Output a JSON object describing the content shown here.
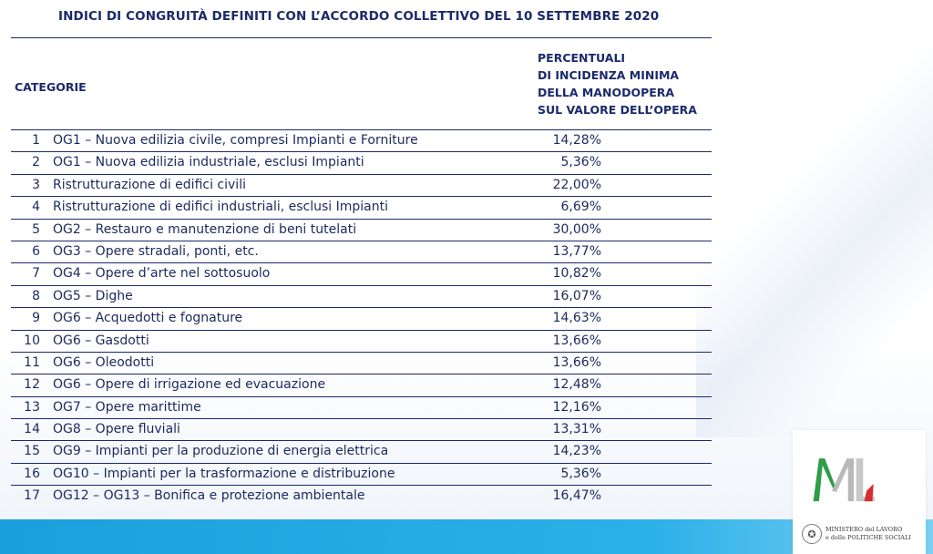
{
  "title": "INDICI DI CONGRUITÀ DEFINITI CON L’ACCORDO COLLETTIVO DEL 10 SETTEMBRE 2020",
  "table": {
    "header_category": "CATEGORIE",
    "header_percent_lines": [
      "PERCENTUALI",
      "DI INCIDENZA MINIMA",
      "DELLA MANODOPERA",
      "SUL VALORE DELL’OPERA"
    ],
    "rows": [
      {
        "n": "1",
        "desc": "OG1 – Nuova edilizia civile, compresi Impianti e Forniture",
        "pct": "14,28%"
      },
      {
        "n": "2",
        "desc": "OG1 – Nuova edilizia industriale, esclusi Impianti",
        "pct": "5,36%"
      },
      {
        "n": "3",
        "desc": "Ristrutturazione di edifici civili",
        "pct": "22,00%"
      },
      {
        "n": "4",
        "desc": "Ristrutturazione di edifici industriali, esclusi Impianti",
        "pct": "6,69%"
      },
      {
        "n": "5",
        "desc": "OG2 – Restauro e manutenzione di beni tutelati",
        "pct": "30,00%"
      },
      {
        "n": "6",
        "desc": "OG3 – Opere stradali, ponti, etc.",
        "pct": "13,77%"
      },
      {
        "n": "7",
        "desc": "OG4 – Opere d’arte nel sottosuolo",
        "pct": "10,82%"
      },
      {
        "n": "8",
        "desc": "OG5 – Dighe",
        "pct": "16,07%"
      },
      {
        "n": "9",
        "desc": "OG6 – Acquedotti e fognature",
        "pct": "14,63%"
      },
      {
        "n": "10",
        "desc": "OG6 – Gasdotti",
        "pct": "13,66%"
      },
      {
        "n": "11",
        "desc": "OG6 – Oleodotti",
        "pct": "13,66%"
      },
      {
        "n": "12",
        "desc": "OG6 – Opere di irrigazione ed evacuazione",
        "pct": "12,48%"
      },
      {
        "n": "13",
        "desc": "OG7 – Opere marittime",
        "pct": "12,16%"
      },
      {
        "n": "14",
        "desc": "OG8 – Opere fluviali",
        "pct": "13,31%"
      },
      {
        "n": "15",
        "desc": "OG9 – Impianti per la produzione di energia elettrica",
        "pct": "14,23%"
      },
      {
        "n": "16",
        "desc": "OG10 – Impianti per la trasformazione e distribuzione",
        "pct": "5,36%"
      },
      {
        "n": "17",
        "desc": "OG12 – OG13 – Bonifica e protezione ambientale",
        "pct": "16,47%"
      }
    ]
  },
  "logo": {
    "letters": "ML",
    "caption_line1": "MINISTERO del LAVORO",
    "caption_line2": "e delle POLITICHE SOCIALI",
    "icon": "italian-emblem-icon"
  },
  "colors": {
    "navy": "#1b2a6b",
    "band": "#1aa0dc",
    "logo_green": "#2e9e48",
    "logo_red": "#d62c2c",
    "logo_gray": "#b9b9b9"
  }
}
